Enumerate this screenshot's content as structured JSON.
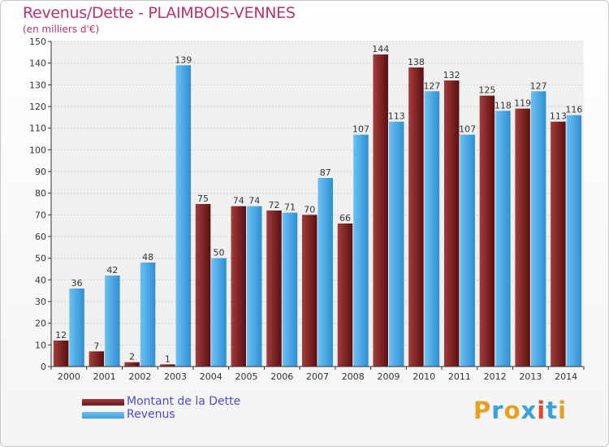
{
  "title": "Revenus/Dette - PLAIMBOIS-VENNES",
  "subtitle": "(en milliers d'€)",
  "legend": [
    {
      "label": "Montant de la Dette",
      "color": "#6b1a1a"
    },
    {
      "label": "Revenus",
      "color": "#3d9ee0"
    }
  ],
  "logo": {
    "text": "Proxiti",
    "colors": [
      "#e8a020",
      "#3aa0e0",
      "#e8a020",
      "#3aa0e0",
      "#e04a2a",
      "#3aa0e0",
      "#e8a020"
    ]
  },
  "colors": {
    "dette": "#6b1a1a",
    "revenus": "#3d9ee0",
    "title": "#b8336a"
  },
  "chart_data": {
    "type": "bar",
    "categories": [
      "2000",
      "2001",
      "2002",
      "2003",
      "2004",
      "2005",
      "2006",
      "2007",
      "2008",
      "2009",
      "2010",
      "2011",
      "2012",
      "2013",
      "2014"
    ],
    "series": [
      {
        "name": "Montant de la Dette",
        "values": [
          12,
          7,
          2,
          1,
          75,
          74,
          72,
          70,
          66,
          144,
          138,
          132,
          125,
          119,
          113
        ]
      },
      {
        "name": "Revenus",
        "values": [
          36,
          42,
          48,
          139,
          50,
          74,
          71,
          87,
          107,
          113,
          127,
          107,
          118,
          127,
          116
        ]
      }
    ],
    "title": "Revenus/Dette - PLAIMBOIS-VENNES",
    "ylabel": "(en milliers d'€)",
    "ylim": [
      0,
      150
    ],
    "yticks": [
      0,
      10,
      20,
      30,
      40,
      50,
      60,
      70,
      80,
      90,
      100,
      110,
      120,
      130,
      140,
      150
    ],
    "grid": true,
    "legend_position": "bottom-left"
  }
}
